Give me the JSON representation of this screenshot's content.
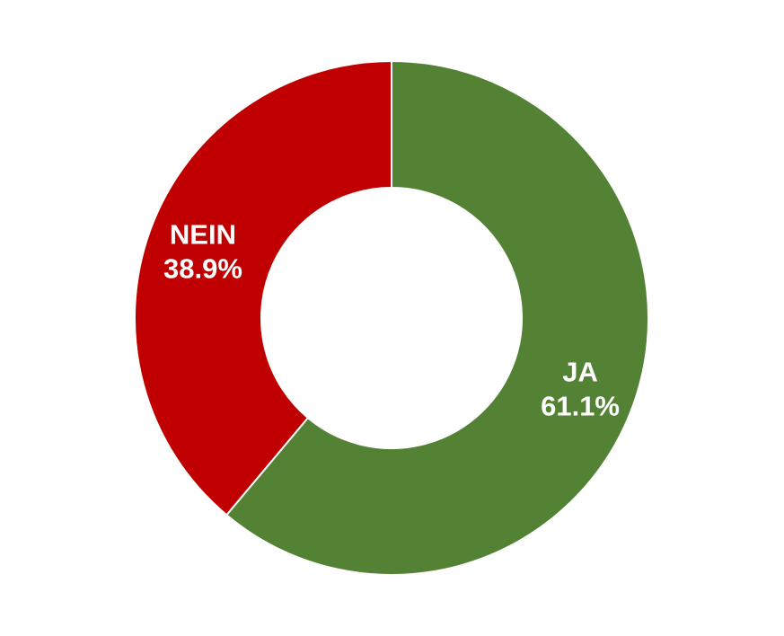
{
  "chart_data": {
    "type": "pie",
    "variant": "donut",
    "title": "",
    "slices": [
      {
        "category": "JA",
        "value": 61.1,
        "display": "61.1%",
        "color": "#548235"
      },
      {
        "category": "NEIN",
        "value": 38.9,
        "display": "38.9%",
        "color": "#C00000"
      }
    ],
    "legend": "none"
  }
}
